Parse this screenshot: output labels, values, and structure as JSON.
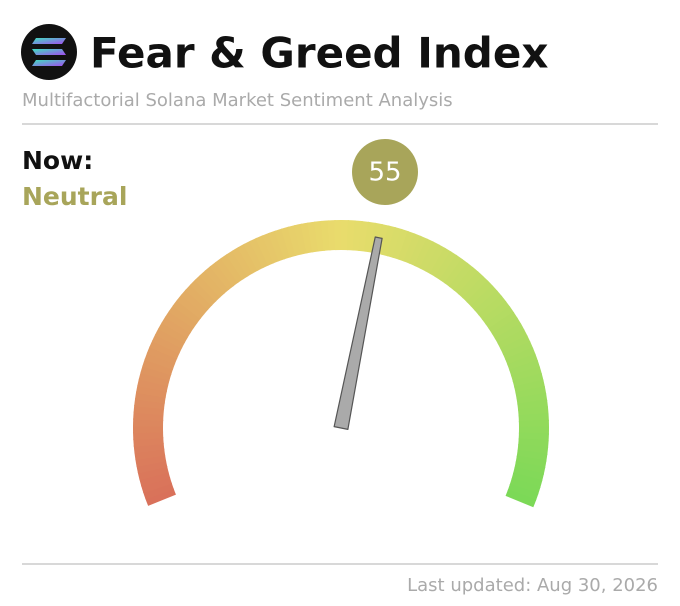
{
  "chart_data": {
    "type": "gauge",
    "title": "Fear & Greed Index",
    "subtitle": "Multifactorial Solana Market Sentiment Analysis",
    "now_label": "Now:",
    "status": "Neutral",
    "status_color": "#a8a55a",
    "value": 55,
    "ylim": [
      0,
      100
    ],
    "colors": [
      "#d9705a",
      "#e9dc6c",
      "#7bd957"
    ],
    "footer": "Last updated: Aug 30, 2026"
  }
}
